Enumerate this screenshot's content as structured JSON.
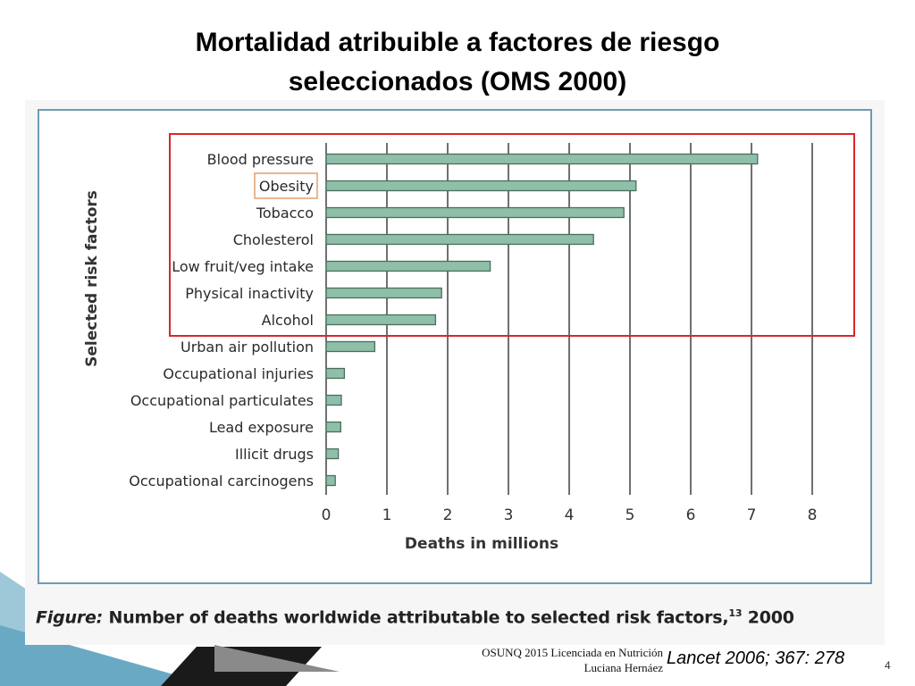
{
  "slide": {
    "title_line1": "Mortalidad atribuible a factores de riesgo",
    "title_line2": "seleccionados (OMS 2000)",
    "footer_line1": "OSUNQ 2015 Licenciada en Nutrición",
    "footer_line2": "Luciana Hernáez",
    "citation": "Lancet 2006; 367: 278",
    "slide_number": "4"
  },
  "figure": {
    "caption_label": "Figure:",
    "caption_text": "Number of deaths worldwide attributable to selected risk factors,",
    "caption_ref": "13",
    "caption_year": "2000"
  },
  "colors": {
    "bar_fill": "#8fbfa8",
    "bar_stroke": "#4a6e5e",
    "highlight_box": "#d9262b",
    "obesity_box": "#e0a070",
    "frame": "#6f9bb0",
    "grid": "#333333"
  },
  "chart_data": {
    "type": "bar",
    "orientation": "horizontal",
    "title": "",
    "xlabel": "Deaths in millions",
    "ylabel": "Selected risk factors",
    "xlim": [
      0,
      8
    ],
    "xticks": [
      "0",
      "1",
      "2",
      "3",
      "4",
      "5",
      "6",
      "7",
      "8"
    ],
    "grid": true,
    "categories": [
      "Blood pressure",
      "Obesity",
      "Tobacco",
      "Cholesterol",
      "Low fruit/veg intake",
      "Physical inactivity",
      "Alcohol",
      "Urban air pollution",
      "Occupational injuries",
      "Occupational particulates",
      "Lead exposure",
      "Illicit drugs",
      "Occupational carcinogens"
    ],
    "values": [
      7.1,
      5.1,
      4.9,
      4.4,
      2.7,
      1.9,
      1.8,
      0.8,
      0.3,
      0.25,
      0.24,
      0.2,
      0.15
    ],
    "highlighted_categories": [
      "Blood pressure",
      "Obesity",
      "Tobacco",
      "Cholesterol",
      "Low fruit/veg intake",
      "Physical inactivity",
      "Alcohol"
    ],
    "boxed_label": "Obesity"
  }
}
